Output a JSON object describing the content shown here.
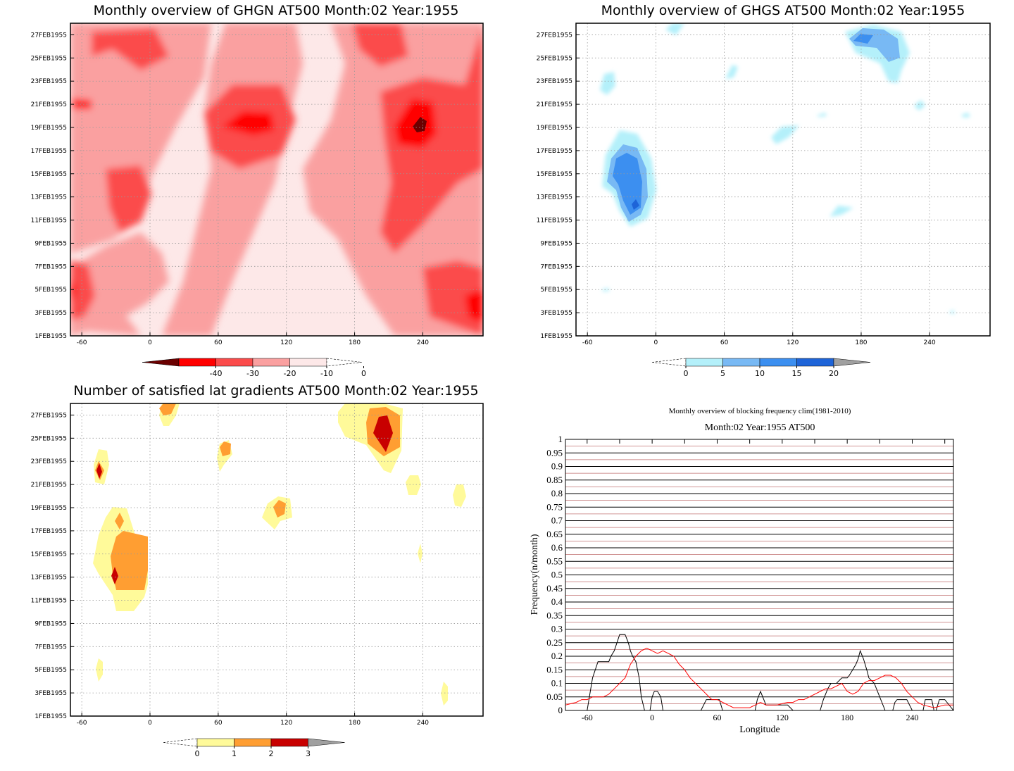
{
  "panels": {
    "ghgn": {
      "title": "Monthly overview of GHGN AT500 Month:02 Year:1955",
      "y_ticks": [
        "1FEB1955",
        "3FEB1955",
        "5FEB1955",
        "7FEB1955",
        "9FEB1955",
        "11FEB1955",
        "13FEB1955",
        "15FEB1955",
        "17FEB1955",
        "19FEB1955",
        "21FEB1955",
        "23FEB1955",
        "25FEB1955",
        "27FEB1955"
      ],
      "x_ticks": [
        "-60",
        "0",
        "60",
        "120",
        "180",
        "240"
      ],
      "colorbar": {
        "ticks": [
          "-40",
          "-30",
          "-20",
          "-10",
          "0"
        ],
        "colors": [
          "#6b0000",
          "#ff0000",
          "#fb4b4b",
          "#faa0a0",
          "#fde8e8"
        ]
      }
    },
    "ghgs": {
      "title": "Monthly overview of GHGS AT500 Month:02 Year:1955",
      "y_ticks": [
        "1FEB1955",
        "3FEB1955",
        "5FEB1955",
        "7FEB1955",
        "9FEB1955",
        "11FEB1955",
        "13FEB1955",
        "15FEB1955",
        "17FEB1955",
        "19FEB1955",
        "21FEB1955",
        "23FEB1955",
        "25FEB1955",
        "27FEB1955"
      ],
      "x_ticks": [
        "-60",
        "0",
        "60",
        "120",
        "180",
        "240"
      ],
      "colorbar": {
        "ticks": [
          "0",
          "5",
          "10",
          "15",
          "20"
        ],
        "colors": [
          "#b4f0fa",
          "#78b9f4",
          "#3c8ff0",
          "#1e64d8",
          "#a0a0a0"
        ]
      }
    },
    "lat": {
      "title": "Number of satisfied lat gradients AT500 Month:02 Year:1955",
      "y_ticks": [
        "1FEB1955",
        "3FEB1955",
        "5FEB1955",
        "7FEB1955",
        "9FEB1955",
        "11FEB1955",
        "13FEB1955",
        "15FEB1955",
        "17FEB1955",
        "19FEB1955",
        "21FEB1955",
        "23FEB1955",
        "25FEB1955",
        "27FEB1955"
      ],
      "x_ticks": [
        "-60",
        "0",
        "60",
        "120",
        "180",
        "240"
      ],
      "colorbar": {
        "ticks": [
          "0",
          "1",
          "2",
          "3"
        ],
        "colors": [
          "#fffa9a",
          "#ff9e32",
          "#c80000",
          "#a0a0a0"
        ]
      }
    },
    "freq": {
      "title": "Monthly overview of blocking frequency clim(1981-2010)",
      "subtitle": "Month:02 Year:1955  AT500",
      "ylabel": "Frequency(n/month)",
      "xlabel": "Longitude",
      "y_ticks": [
        "0",
        "0.05",
        "0.1",
        "0.15",
        "0.2",
        "0.25",
        "0.3",
        "0.35",
        "0.4",
        "0.45",
        "0.5",
        "0.55",
        "0.6",
        "0.65",
        "0.7",
        "0.75",
        "0.8",
        "0.85",
        "0.9",
        "0.95",
        "1"
      ],
      "x_ticks": [
        "-60",
        "0",
        "60",
        "120",
        "180",
        "240"
      ]
    }
  },
  "chart_data": [
    {
      "type": "heatmap",
      "title": "Monthly overview of GHGN AT500 Month:02 Year:1955",
      "x_range": [
        -70,
        293
      ],
      "y_range": [
        "1FEB1955",
        "28FEB1955"
      ],
      "levels": [
        -40,
        -30,
        -20,
        -10,
        0
      ],
      "colors": [
        "#6b0000",
        "#ff0000",
        "#fb4b4b",
        "#faa0a0",
        "#fde8e8"
      ],
      "features": [
        {
          "level": -40,
          "lon": 225,
          "day": 19
        },
        {
          "level": -30,
          "lon": 75,
          "day": 19.5
        },
        {
          "level": -30,
          "lon": 228,
          "day": 19.5
        },
        {
          "level": -30,
          "lon": -65,
          "day": 21
        },
        {
          "level": -30,
          "lon": -65,
          "day": 5
        },
        {
          "level": -30,
          "lon": 282,
          "day": 3.5
        }
      ]
    },
    {
      "type": "heatmap",
      "title": "Monthly overview of GHGS AT500 Month:02 Year:1955",
      "x_range": [
        -70,
        293
      ],
      "y_range": [
        "1FEB1955",
        "28FEB1955"
      ],
      "levels": [
        0,
        5,
        10,
        15,
        20
      ],
      "colors": [
        "#b4f0fa",
        "#78b9f4",
        "#3c8ff0",
        "#1e64d8",
        "#a0a0a0"
      ],
      "features": [
        {
          "level": 15,
          "lon": -28,
          "day": 12.5
        },
        {
          "level": 10,
          "lon": -32,
          "day": 14.5
        },
        {
          "level": 10,
          "lon": 180,
          "day": 26.5
        },
        {
          "level": 0,
          "lon": -55,
          "day": 23
        }
      ]
    },
    {
      "type": "heatmap",
      "title": "Number of satisfied lat gradients AT500 Month:02 Year:1955",
      "x_range": [
        -70,
        293
      ],
      "y_range": [
        "1FEB1955",
        "28FEB1955"
      ],
      "levels": [
        0,
        1,
        2,
        3
      ],
      "colors": [
        "#fffa9a",
        "#ff9e32",
        "#c80000",
        "#a0a0a0"
      ],
      "features": [
        {
          "level": 2,
          "lon": -40,
          "day": 13
        },
        {
          "level": 2,
          "lon": -55,
          "day": 22.5
        },
        {
          "level": 2,
          "lon": 192,
          "day": 25.5
        },
        {
          "level": 1,
          "lon": -30,
          "day": 15
        },
        {
          "level": 1,
          "lon": 100,
          "day": 19
        },
        {
          "level": 1,
          "lon": 55,
          "day": 24
        }
      ]
    },
    {
      "type": "line",
      "title": "Monthly overview of blocking frequency clim(1981-2010)",
      "subtitle": "Month:02 Year:1955  AT500",
      "xlabel": "Longitude",
      "ylabel": "Frequency(n/month)",
      "xlim": [
        -80,
        278
      ],
      "ylim": [
        0,
        1
      ],
      "series": [
        {
          "color": "#000000",
          "x": [
            -80,
            -60,
            -55,
            -50,
            -45,
            -42,
            -40,
            -38,
            -35,
            -30,
            -25,
            -22,
            -20,
            -18,
            -15,
            -12,
            -10,
            -7,
            -5,
            -2,
            0,
            2,
            5,
            8,
            10,
            12,
            15,
            20,
            45,
            50,
            55,
            60,
            62,
            65,
            70,
            90,
            95,
            97,
            100,
            103,
            105,
            110,
            125,
            130,
            135,
            140,
            145,
            150,
            155,
            158,
            160,
            162,
            165,
            170,
            175,
            180,
            182,
            185,
            188,
            190,
            192,
            195,
            198,
            200,
            205,
            210,
            215,
            222,
            224,
            226,
            228,
            232,
            235,
            240,
            245,
            248,
            250,
            252,
            255,
            258,
            260,
            262,
            265,
            268,
            270,
            278
          ],
          "y": [
            0,
            0,
            0.12,
            0.18,
            0.18,
            0.18,
            0.18,
            0.2,
            0.22,
            0.28,
            0.28,
            0.25,
            0.22,
            0.2,
            0.18,
            0.12,
            0.05,
            0,
            0,
            0,
            0.05,
            0.07,
            0.07,
            0.05,
            0,
            0,
            0,
            0,
            0,
            0.04,
            0.04,
            0.04,
            0.04,
            0,
            0,
            0,
            0,
            0.04,
            0.07,
            0.04,
            0.02,
            0.02,
            0.02,
            0,
            0,
            0,
            0,
            0,
            0,
            0.04,
            0.06,
            0.08,
            0.1,
            0.1,
            0.12,
            0.12,
            0.13,
            0.15,
            0.17,
            0.19,
            0.22,
            0.19,
            0.15,
            0.12,
            0.1,
            0.05,
            0,
            0,
            0.03,
            0.04,
            0.04,
            0.04,
            0.04,
            0,
            0,
            0,
            0,
            0.04,
            0.04,
            0.04,
            0,
            0,
            0.04,
            0.04,
            0.04,
            0
          ]
        },
        {
          "color": "#ff0000",
          "x": [
            -80,
            -75,
            -70,
            -65,
            -60,
            -55,
            -50,
            -45,
            -40,
            -35,
            -30,
            -25,
            -20,
            -15,
            -10,
            -5,
            0,
            5,
            10,
            15,
            20,
            25,
            30,
            35,
            40,
            45,
            50,
            55,
            60,
            65,
            70,
            75,
            80,
            85,
            90,
            95,
            100,
            105,
            110,
            115,
            120,
            125,
            130,
            135,
            140,
            145,
            150,
            155,
            160,
            165,
            170,
            175,
            180,
            185,
            190,
            195,
            200,
            205,
            210,
            215,
            220,
            225,
            230,
            235,
            240,
            245,
            250,
            255,
            260,
            265,
            270,
            278
          ],
          "y": [
            0.02,
            0.025,
            0.03,
            0.04,
            0.04,
            0.05,
            0.05,
            0.05,
            0.06,
            0.08,
            0.1,
            0.12,
            0.17,
            0.2,
            0.22,
            0.23,
            0.22,
            0.21,
            0.22,
            0.21,
            0.2,
            0.17,
            0.15,
            0.12,
            0.1,
            0.08,
            0.06,
            0.04,
            0.04,
            0.03,
            0.02,
            0.01,
            0.01,
            0.01,
            0.01,
            0.02,
            0.03,
            0.02,
            0.02,
            0.02,
            0.025,
            0.03,
            0.03,
            0.04,
            0.04,
            0.05,
            0.06,
            0.07,
            0.08,
            0.08,
            0.09,
            0.1,
            0.07,
            0.06,
            0.07,
            0.1,
            0.11,
            0.11,
            0.12,
            0.13,
            0.13,
            0.12,
            0.1,
            0.07,
            0.05,
            0.03,
            0.02,
            0.015,
            0.01,
            0.015,
            0.02,
            0.02
          ]
        }
      ]
    }
  ]
}
